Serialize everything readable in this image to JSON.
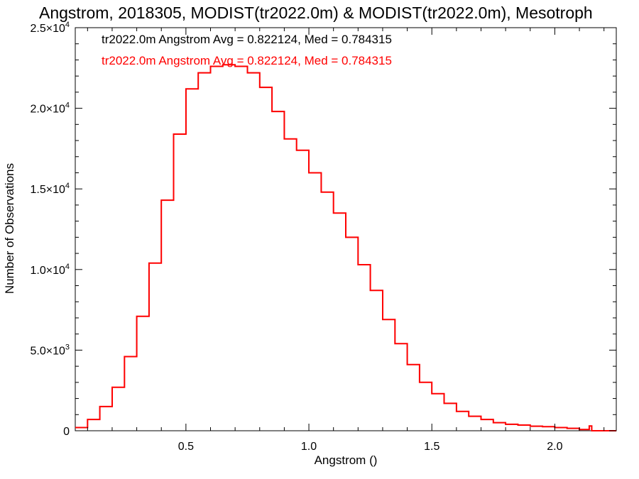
{
  "chart_data": {
    "type": "line",
    "title": "Angstrom, 2018305, MODIST(tr2022.0m) & MODIST(tr2022.0m), Mesotroph",
    "xlabel": "Angstrom ()",
    "ylabel": "Number of Observations",
    "xlim": [
      0.05,
      2.25
    ],
    "ylim": [
      0,
      25000
    ],
    "x_ticks": [
      {
        "value": 0.5,
        "label": "0.5"
      },
      {
        "value": 1.0,
        "label": "1.0"
      },
      {
        "value": 1.5,
        "label": "1.5"
      },
      {
        "value": 2.0,
        "label": "2.0"
      }
    ],
    "y_ticks": [
      {
        "value": 0,
        "mantissa": "0",
        "exp": ""
      },
      {
        "value": 5000,
        "mantissa": "5.0×10",
        "exp": "3"
      },
      {
        "value": 10000,
        "mantissa": "1.0×10",
        "exp": "4"
      },
      {
        "value": 15000,
        "mantissa": "1.5×10",
        "exp": "4"
      },
      {
        "value": 20000,
        "mantissa": "2.0×10",
        "exp": "4"
      },
      {
        "value": 25000,
        "mantissa": "2.5×10",
        "exp": "4"
      }
    ],
    "legend": [
      {
        "text": "tr2022.0m Angstrom Avg = 0.822124, Med = 0.784315",
        "color": "#000000"
      },
      {
        "text": "tr2022.0m Angstrom Avg = 0.822124, Med = 0.784315",
        "color": "#ff0000"
      }
    ],
    "legend_placement": "top-left",
    "series": [
      {
        "color": "#000000",
        "x": [
          0.05,
          0.1,
          0.15,
          0.2,
          0.25,
          0.3,
          0.35,
          0.4,
          0.45,
          0.5,
          0.55,
          0.6,
          0.65,
          0.7,
          0.75,
          0.8,
          0.85,
          0.9,
          0.95,
          1.0,
          1.05,
          1.1,
          1.15,
          1.2,
          1.25,
          1.3,
          1.35,
          1.4,
          1.45,
          1.5,
          1.55,
          1.6,
          1.65,
          1.7,
          1.75,
          1.8,
          1.85,
          1.9,
          1.95,
          2.0,
          2.05,
          2.1,
          2.14,
          2.15,
          2.25
        ],
        "y": [
          200,
          700,
          1500,
          2700,
          4600,
          7100,
          10400,
          14300,
          18400,
          21200,
          22200,
          22600,
          22700,
          22600,
          22200,
          21300,
          19800,
          18100,
          17400,
          16000,
          14800,
          13500,
          12000,
          10300,
          8700,
          6900,
          5400,
          4100,
          3000,
          2300,
          1700,
          1200,
          900,
          700,
          500,
          400,
          350,
          280,
          250,
          200,
          150,
          80,
          300,
          0,
          0
        ]
      },
      {
        "color": "#ff0000",
        "x": [
          0.05,
          0.1,
          0.15,
          0.2,
          0.25,
          0.3,
          0.35,
          0.4,
          0.45,
          0.5,
          0.55,
          0.6,
          0.65,
          0.7,
          0.75,
          0.8,
          0.85,
          0.9,
          0.95,
          1.0,
          1.05,
          1.1,
          1.15,
          1.2,
          1.25,
          1.3,
          1.35,
          1.4,
          1.45,
          1.5,
          1.55,
          1.6,
          1.65,
          1.7,
          1.75,
          1.8,
          1.85,
          1.9,
          1.95,
          2.0,
          2.05,
          2.1,
          2.14,
          2.15,
          2.25
        ],
        "y": [
          200,
          700,
          1500,
          2700,
          4600,
          7100,
          10400,
          14300,
          18400,
          21200,
          22200,
          22600,
          22700,
          22600,
          22200,
          21300,
          19800,
          18100,
          17400,
          16000,
          14800,
          13500,
          12000,
          10300,
          8700,
          6900,
          5400,
          4100,
          3000,
          2300,
          1700,
          1200,
          900,
          700,
          500,
          400,
          350,
          280,
          250,
          200,
          150,
          80,
          300,
          0,
          0
        ]
      }
    ]
  }
}
